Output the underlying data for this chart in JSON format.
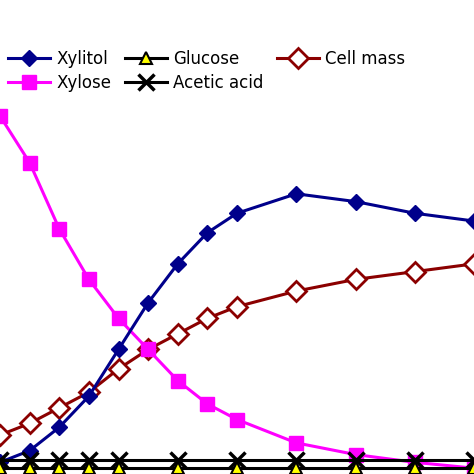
{
  "xylitol_x": [
    0,
    6,
    12,
    18,
    24,
    30,
    36,
    42,
    48,
    60,
    72,
    84,
    96
  ],
  "xylitol_y": [
    3,
    6,
    12,
    20,
    32,
    44,
    54,
    62,
    67,
    72,
    70,
    67,
    65
  ],
  "xylose_x": [
    0,
    6,
    12,
    18,
    24,
    30,
    36,
    42,
    48,
    60,
    72,
    84,
    96
  ],
  "xylose_y": [
    92,
    80,
    63,
    50,
    40,
    32,
    24,
    18,
    14,
    8,
    5,
    3,
    1.5
  ],
  "glucose_x": [
    0,
    6,
    12,
    18,
    24,
    36,
    48,
    60,
    72,
    84,
    96
  ],
  "glucose_y": [
    1.5,
    1.5,
    1.5,
    1.5,
    1.5,
    1.5,
    1.5,
    1.5,
    1.5,
    1.5,
    1.5
  ],
  "acetic_x": [
    0,
    6,
    12,
    18,
    24,
    36,
    48,
    60,
    72,
    84,
    96
  ],
  "acetic_y": [
    3.5,
    3.5,
    3.5,
    3.5,
    3.5,
    3.5,
    3.5,
    3.5,
    3.5,
    3.5,
    3.5
  ],
  "cellmass_x": [
    0,
    6,
    12,
    18,
    24,
    30,
    36,
    42,
    48,
    60,
    72,
    84,
    96
  ],
  "cellmass_y": [
    10,
    13,
    17,
    21,
    27,
    32,
    36,
    40,
    43,
    47,
    50,
    52,
    54
  ],
  "xylitol_color": "#00008B",
  "xylose_color": "#FF00FF",
  "glucose_color": "#000000",
  "acetic_color": "#000000",
  "cellmass_color": "#8B0000",
  "glucose_marker_color": "#FFFF00",
  "xlim": [
    0,
    96
  ],
  "ylim": [
    0,
    95
  ],
  "figsize": [
    4.74,
    4.74
  ],
  "dpi": 100,
  "background_color": "#ffffff"
}
